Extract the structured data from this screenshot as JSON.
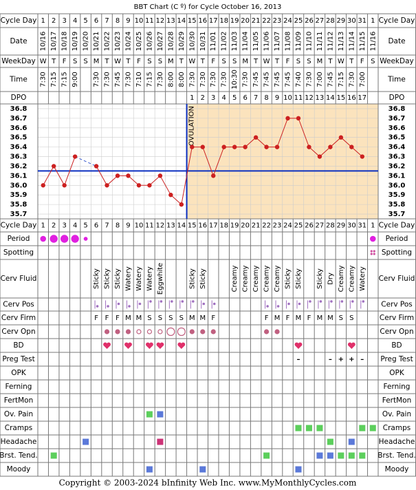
{
  "title": "BBT Chart (C º) for Cycle October 16, 2013",
  "copyright": "Copyright © 2003-2024 bInfinity Web Inc.     www.MyMonthlyCycles.com",
  "row_labels": {
    "cycle_day": "Cycle Day",
    "date": "Date",
    "weekday": "WeekDay",
    "time": "Time",
    "dpo": "DPO",
    "period": "Period",
    "spotting": "Spotting",
    "cerv_fluid": "Cerv Fluid",
    "cerv_pos": "Cerv Pos",
    "cerv_firm": "Cerv Firm",
    "cerv_opn": "Cerv Opn",
    "bd": "BD",
    "preg_test": "Preg Test",
    "opk": "OPK",
    "ferning": "Ferning",
    "fertmon": "FertMon",
    "ov_pain": "Ov. Pain",
    "cramps": "Cramps",
    "headache": "Headache",
    "brst_tend": "Brst. Tend.",
    "moody": "Moody"
  },
  "days": {
    "date": [
      "10/16",
      "10/17",
      "10/18",
      "10/19",
      "10/20",
      "10/21",
      "10/22",
      "10/23",
      "10/24",
      "10/25",
      "10/26",
      "10/27",
      "10/28",
      "10/29",
      "10/30",
      "10/31",
      "11/01",
      "11/02",
      "11/03",
      "11/04",
      "11/05",
      "11/06",
      "11/07",
      "11/08",
      "11/09",
      "11/10",
      "11/11",
      "11/12",
      "11/13",
      "11/14",
      "11/15",
      "11/16"
    ],
    "weekday": [
      "W",
      "T",
      "F",
      "S",
      "S",
      "M",
      "T",
      "W",
      "T",
      "F",
      "S",
      "S",
      "M",
      "T",
      "W",
      "T",
      "F",
      "S",
      "S",
      "M",
      "T",
      "W",
      "T",
      "F",
      "S",
      "S",
      "M",
      "T",
      "W",
      "T",
      "F",
      "S"
    ],
    "time": [
      "7:30",
      "7:15",
      "7:15",
      "9:00",
      null,
      "7:30",
      "7:30",
      "7:45",
      "7:30",
      "7:10",
      "7:15",
      "7:30",
      "8:00",
      "8:00",
      "7:30",
      "7:30",
      "7:30",
      "7:30",
      "10:30",
      "7:30",
      "7:45",
      "7:45",
      "7:45",
      "7:45",
      "7:40",
      "7:30",
      "7:00",
      "7:45",
      "7:15",
      "7:30",
      "7:00",
      null
    ],
    "dpo": [
      null,
      null,
      null,
      null,
      null,
      null,
      null,
      null,
      null,
      null,
      null,
      null,
      null,
      null,
      1,
      2,
      3,
      4,
      5,
      6,
      7,
      8,
      9,
      10,
      11,
      12,
      13,
      14,
      15,
      16,
      17,
      null
    ]
  },
  "chart_data": {
    "type": "line",
    "categories": [
      1,
      2,
      3,
      4,
      5,
      6,
      7,
      8,
      9,
      10,
      11,
      12,
      13,
      14,
      15,
      16,
      17,
      18,
      19,
      20,
      21,
      22,
      23,
      24,
      25,
      26,
      27,
      28,
      29,
      30,
      31,
      1
    ],
    "values": [
      36.0,
      36.2,
      36.0,
      36.3,
      null,
      36.2,
      36.0,
      36.1,
      36.1,
      36.0,
      36.0,
      36.1,
      35.9,
      35.8,
      36.4,
      36.4,
      36.1,
      36.4,
      36.4,
      36.4,
      36.5,
      36.4,
      36.4,
      36.7,
      36.7,
      36.4,
      36.3,
      36.4,
      36.5,
      36.4,
      36.3,
      null
    ],
    "color": "#cc2020",
    "ylim": [
      35.65,
      36.85
    ],
    "yticks": [
      36.8,
      36.7,
      36.6,
      36.5,
      36.4,
      36.3,
      36.2,
      36.1,
      {
        "value": 36.0,
        "label": "36.0"
      },
      35.9,
      35.8,
      35.7
    ],
    "grid": true,
    "coverline": 36.15,
    "coverline_color": "#0a2fc0",
    "ovulation_label": "OVULATION",
    "luteal_color": "#fbe3bd"
  },
  "observations": {
    "period": [
      2,
      3,
      3,
      3,
      1,
      null,
      null,
      null,
      null,
      null,
      null,
      null,
      null,
      null,
      null,
      null,
      null,
      null,
      null,
      null,
      null,
      null,
      null,
      null,
      null,
      null,
      null,
      null,
      null,
      null,
      null,
      2
    ],
    "spotting": [
      null,
      null,
      null,
      null,
      null,
      null,
      null,
      null,
      null,
      null,
      null,
      null,
      null,
      null,
      null,
      null,
      null,
      null,
      null,
      null,
      null,
      null,
      null,
      null,
      null,
      null,
      null,
      null,
      null,
      null,
      null,
      1
    ],
    "cerv_fluid": [
      null,
      null,
      null,
      null,
      null,
      "Sticky",
      "Sticky",
      "Sticky",
      "Watery",
      "Watery",
      "Watery",
      "Eggwhite",
      null,
      null,
      "Sticky",
      "Sticky",
      null,
      null,
      "Creamy",
      "Creamy",
      "Creamy",
      "Creamy",
      "Creamy",
      "Sticky",
      "Sticky",
      null,
      "Sticky",
      "Dry",
      "Creamy",
      "Creamy",
      "Watery",
      null
    ],
    "cerv_pos": [
      null,
      null,
      null,
      null,
      null,
      1,
      1,
      2,
      1,
      2,
      3,
      3,
      3,
      3,
      3,
      2,
      2,
      null,
      null,
      null,
      null,
      1,
      1,
      2,
      2,
      3,
      3,
      3,
      3,
      3,
      3,
      null
    ],
    "cerv_firm": [
      null,
      null,
      null,
      null,
      null,
      "F",
      "F",
      "F",
      "M",
      "M",
      "S",
      "S",
      "S",
      "S",
      "M",
      "M",
      "F",
      null,
      null,
      null,
      null,
      "F",
      "M",
      "F",
      "M",
      "F",
      "M",
      "M",
      "S",
      "S",
      null,
      null
    ],
    "cerv_opn": [
      null,
      null,
      null,
      null,
      null,
      null,
      1,
      1,
      1,
      2,
      2,
      2,
      3,
      3,
      1,
      1,
      1,
      null,
      null,
      null,
      null,
      1,
      1,
      null,
      null,
      null,
      null,
      null,
      null,
      null,
      null,
      null
    ],
    "bd": [
      null,
      null,
      null,
      null,
      null,
      null,
      1,
      null,
      1,
      null,
      1,
      1,
      null,
      1,
      null,
      null,
      null,
      null,
      null,
      null,
      null,
      null,
      null,
      null,
      1,
      null,
      null,
      null,
      null,
      1,
      null,
      null
    ],
    "preg_test": [
      null,
      null,
      null,
      null,
      null,
      null,
      null,
      null,
      null,
      null,
      null,
      null,
      null,
      null,
      null,
      null,
      null,
      null,
      null,
      null,
      null,
      null,
      null,
      null,
      "–",
      null,
      null,
      "–",
      "+",
      "+",
      "–",
      null
    ],
    "ov_pain": [
      null,
      null,
      null,
      null,
      null,
      null,
      null,
      null,
      null,
      null,
      "#5ccf5c",
      "#5b79d9",
      null,
      null,
      null,
      null,
      null,
      null,
      null,
      null,
      null,
      null,
      null,
      null,
      null,
      null,
      null,
      null,
      null,
      null,
      null,
      null
    ],
    "cramps": [
      null,
      null,
      null,
      null,
      null,
      null,
      null,
      null,
      null,
      null,
      null,
      null,
      null,
      null,
      null,
      null,
      null,
      null,
      null,
      null,
      null,
      null,
      null,
      null,
      "#5ccf5c",
      "#5ccf5c",
      "#5ccf5c",
      null,
      null,
      null,
      "#5ccf5c",
      "#5ccf5c"
    ],
    "headache": [
      null,
      null,
      null,
      null,
      "#5b79d9",
      null,
      null,
      null,
      null,
      null,
      null,
      "#cc3377",
      null,
      null,
      null,
      null,
      null,
      null,
      null,
      null,
      null,
      null,
      null,
      null,
      null,
      null,
      null,
      "#5ccf5c",
      null,
      "#5b79d9",
      null,
      null
    ],
    "brst_tend": [
      null,
      "#5ccf5c",
      null,
      null,
      null,
      null,
      null,
      null,
      null,
      null,
      null,
      null,
      null,
      null,
      null,
      null,
      null,
      null,
      null,
      null,
      null,
      "#5ccf5c",
      null,
      null,
      null,
      null,
      "#5b79d9",
      "#5b79d9",
      "#5ccf5c",
      "#5ccf5c",
      "#5ccf5c",
      null
    ],
    "moody": [
      null,
      null,
      null,
      null,
      null,
      null,
      null,
      null,
      null,
      null,
      "#5b79d9",
      null,
      null,
      null,
      null,
      "#5b79d9",
      null,
      null,
      null,
      null,
      null,
      null,
      null,
      null,
      "#5b79d9",
      null,
      null,
      null,
      null,
      null,
      null,
      null
    ]
  }
}
